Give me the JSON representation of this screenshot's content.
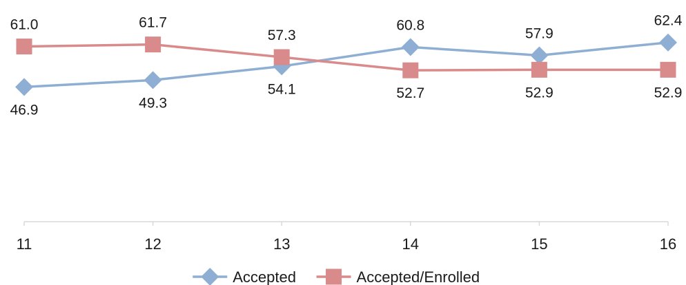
{
  "chart_data": {
    "type": "line",
    "categories": [
      "11",
      "12",
      "13",
      "14",
      "15",
      "16"
    ],
    "series": [
      {
        "name": "Accepted",
        "values": [
          46.9,
          49.3,
          54.1,
          60.8,
          57.9,
          62.4
        ],
        "labels": [
          "46.9",
          "49.3",
          "54.1",
          "60.8",
          "57.9",
          "62.4"
        ],
        "color": "#8eaed3",
        "marker": "diamond"
      },
      {
        "name": "Accepted/Enrolled",
        "values": [
          61.0,
          61.7,
          57.3,
          52.7,
          52.9,
          52.9
        ],
        "labels": [
          "61.0",
          "61.7",
          "57.3",
          "52.7",
          "52.9",
          "52.9"
        ],
        "color": "#d98a8a",
        "marker": "square"
      }
    ],
    "title": "",
    "xlabel": "",
    "ylabel": "",
    "ylim": [
      0,
      70
    ],
    "grid": false,
    "legend_position": "bottom"
  }
}
